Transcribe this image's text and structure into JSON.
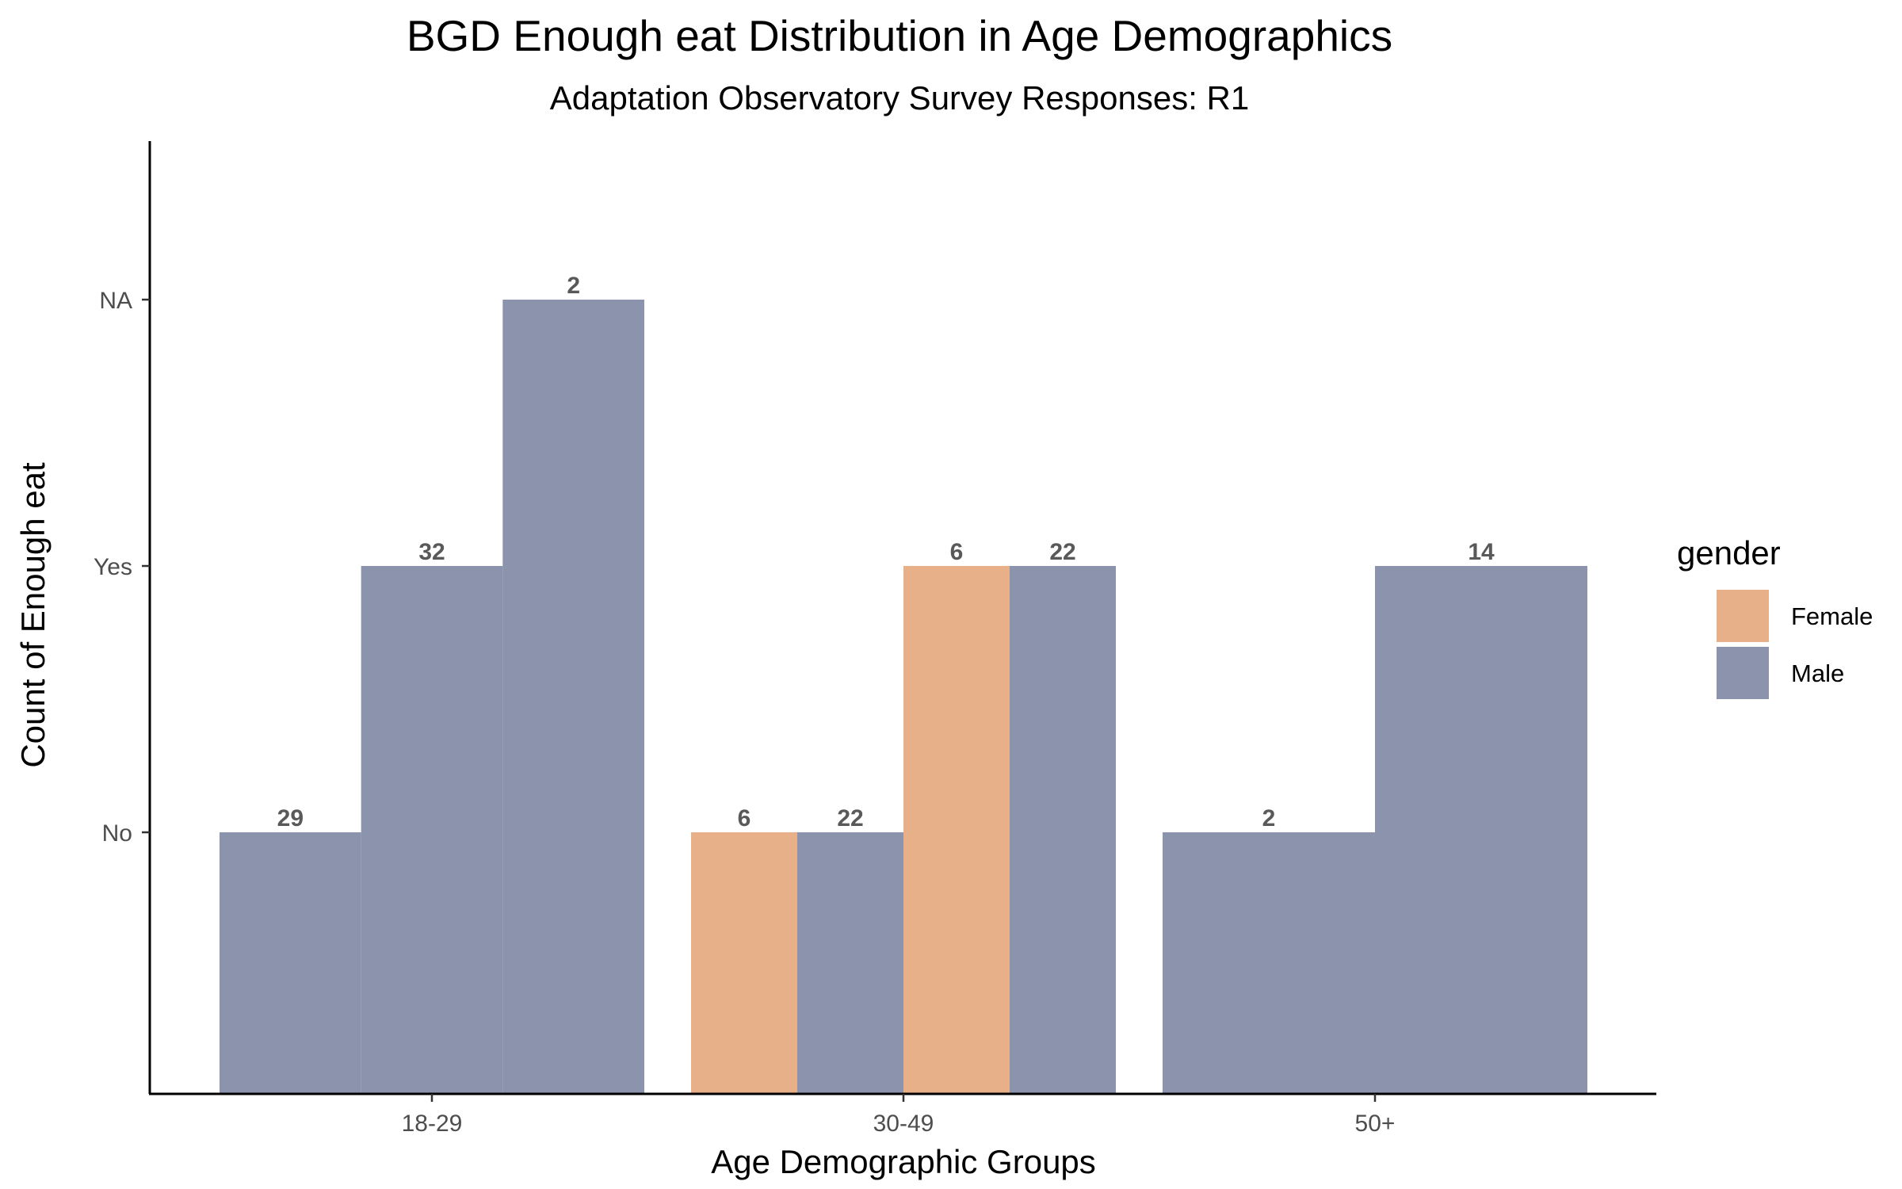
{
  "chart_data": {
    "type": "bar",
    "title": "BGD Enough eat Distribution in Age Demographics",
    "subtitle": "Adaptation Observatory Survey Responses: R1",
    "xlabel": "Age Demographic Groups",
    "ylabel": "Count of Enough eat",
    "categories": [
      "18-29",
      "30-49",
      "50+"
    ],
    "y_levels": [
      "No",
      "Yes",
      "NA"
    ],
    "legend": {
      "title": "gender",
      "position": "right",
      "entries": [
        {
          "label": "Female",
          "color": "#E8B088"
        },
        {
          "label": "Male",
          "color": "#8B93AD"
        }
      ]
    },
    "bars": [
      {
        "category": "18-29",
        "gender": "Male",
        "response": "No",
        "count": 29
      },
      {
        "category": "18-29",
        "gender": "Male",
        "response": "Yes",
        "count": 32
      },
      {
        "category": "18-29",
        "gender": "Male",
        "response": "NA",
        "count": 2
      },
      {
        "category": "30-49",
        "gender": "Female",
        "response": "No",
        "count": 6
      },
      {
        "category": "30-49",
        "gender": "Male",
        "response": "No",
        "count": 22
      },
      {
        "category": "30-49",
        "gender": "Female",
        "response": "Yes",
        "count": 6
      },
      {
        "category": "30-49",
        "gender": "Male",
        "response": "Yes",
        "count": 22
      },
      {
        "category": "50+",
        "gender": "Male",
        "response": "No",
        "count": 2
      },
      {
        "category": "50+",
        "gender": "Male",
        "response": "Yes",
        "count": 14
      }
    ],
    "grid": false
  }
}
